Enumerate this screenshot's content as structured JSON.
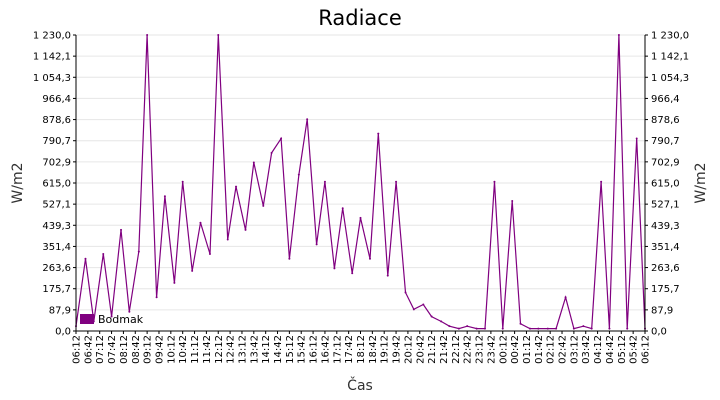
{
  "chart_data": {
    "type": "line",
    "title": "Radiace",
    "xlabel": "Čas",
    "ylabel": "W/m2",
    "ylabel_right": "W/m2",
    "ylim": [
      0,
      1230
    ],
    "y_ticks": [
      "0,0",
      "87,9",
      "175,7",
      "263,6",
      "351,4",
      "439,3",
      "527,1",
      "615,0",
      "702,9",
      "790,7",
      "878,6",
      "966,4",
      "1 054,3",
      "1 142,1",
      "1 230,0"
    ],
    "x_ticks": [
      "06:12",
      "06:42",
      "07:12",
      "07:42",
      "08:12",
      "08:42",
      "09:12",
      "09:42",
      "10:12",
      "10:42",
      "11:12",
      "11:42",
      "12:12",
      "12:42",
      "13:12",
      "13:42",
      "14:12",
      "14:42",
      "15:12",
      "15:42",
      "16:12",
      "16:42",
      "17:12",
      "17:42",
      "18:12",
      "18:42",
      "19:12",
      "19:42",
      "20:12",
      "20:42",
      "21:12",
      "21:42",
      "22:12",
      "22:42",
      "23:12",
      "23:42",
      "00:12",
      "00:42",
      "01:12",
      "01:42",
      "02:12",
      "02:42",
      "03:12",
      "03:42",
      "04:12",
      "04:42",
      "05:12",
      "05:42",
      "06:12"
    ],
    "grid": true,
    "legend_position": "bottom-left",
    "series": [
      {
        "name": "Bodmak",
        "color": "#800080",
        "x": [
          0,
          0.8,
          1.5,
          2.3,
          3,
          3.8,
          4.5,
          5.3,
          6,
          6.8,
          7.5,
          8.3,
          9,
          9.8,
          10.5,
          11.3,
          12,
          12.8,
          13.5,
          14.3,
          15,
          15.8,
          16.5,
          17.3,
          18,
          18.8,
          19.5,
          20.3,
          21,
          21.8,
          22.5,
          23.3,
          24,
          24.8,
          25.5,
          26.3,
          27,
          27.8,
          28.5,
          29.3,
          30,
          30.8,
          31.5,
          32.3,
          33,
          33.8,
          34.5,
          35.3,
          36,
          36.8,
          37.5,
          38.3,
          39,
          39.8,
          40.5,
          41.3,
          42,
          42.8,
          43.5,
          44.3,
          45,
          45.8,
          46.5,
          47.3,
          48
        ],
        "values": [
          20,
          300,
          40,
          320,
          60,
          420,
          80,
          330,
          1230,
          140,
          560,
          200,
          620,
          250,
          450,
          320,
          1230,
          380,
          600,
          420,
          700,
          520,
          740,
          800,
          300,
          650,
          880,
          360,
          620,
          260,
          510,
          240,
          470,
          300,
          820,
          230,
          620,
          160,
          90,
          110,
          60,
          40,
          20,
          10,
          20,
          10,
          10,
          620,
          10,
          540,
          30,
          10,
          10,
          10,
          10,
          140,
          10,
          20,
          10,
          620,
          10,
          1230,
          10,
          800,
          10
        ]
      }
    ]
  }
}
